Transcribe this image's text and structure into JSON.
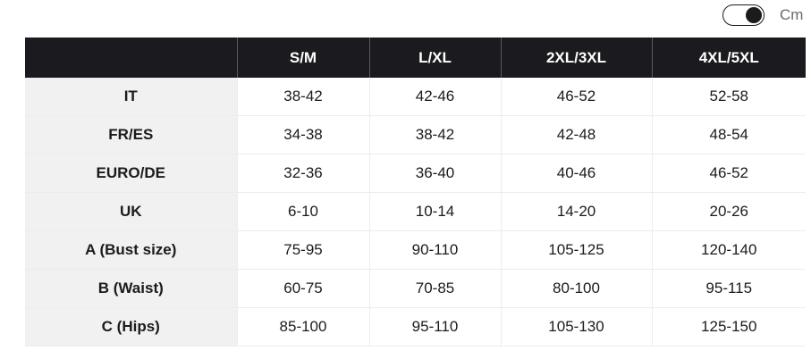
{
  "unit_toggle": {
    "label": "Cm",
    "state": "on"
  },
  "size_table": {
    "headers": [
      "",
      "S/M",
      "L/XL",
      "2XL/3XL",
      "4XL/5XL"
    ],
    "rows": [
      {
        "label": "IT",
        "values": [
          "38-42",
          "42-46",
          "46-52",
          "52-58"
        ]
      },
      {
        "label": "FR/ES",
        "values": [
          "34-38",
          "38-42",
          "42-48",
          "48-54"
        ]
      },
      {
        "label": "EURO/DE",
        "values": [
          "32-36",
          "36-40",
          "40-46",
          "46-52"
        ]
      },
      {
        "label": "UK",
        "values": [
          "6-10",
          "10-14",
          "14-20",
          "20-26"
        ]
      },
      {
        "label": "A (Bust size)",
        "values": [
          "75-95",
          "90-110",
          "105-125",
          "120-140"
        ]
      },
      {
        "label": "B (Waist)",
        "values": [
          "60-75",
          "70-85",
          "80-100",
          "95-115"
        ]
      },
      {
        "label": "C (Hips)",
        "values": [
          "85-100",
          "95-110",
          "105-130",
          "125-150"
        ]
      }
    ]
  },
  "colors": {
    "header_bg": "#1b1a1e",
    "header_text": "#ffffff",
    "label_cell_bg": "#f1f1f1",
    "grid_line": "#ececec"
  }
}
